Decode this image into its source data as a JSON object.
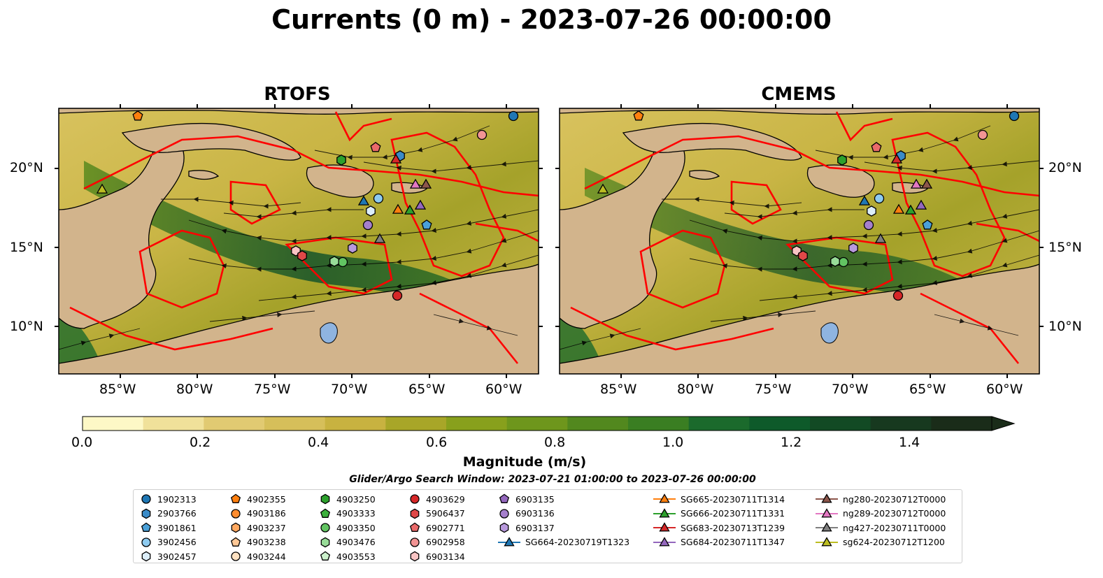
{
  "title": "Currents (0 m) - 2023-07-26 00:00:00",
  "panels": [
    {
      "title": "RTOFS"
    },
    {
      "title": "CMEMS"
    }
  ],
  "map": {
    "lon_range": [
      -89,
      -58
    ],
    "lat_range": [
      7,
      24
    ],
    "lon_ticks": [
      "85°W",
      "80°W",
      "75°W",
      "70°W",
      "65°W",
      "60°W"
    ],
    "lat_ticks": [
      "20°N",
      "15°N",
      "10°N"
    ],
    "land_color": "#d2b48c",
    "boundary_color": "#ff0000",
    "streamline_color": "#000000"
  },
  "colorbar": {
    "label": "Magnitude (m/s)",
    "ticks": [
      "0.0",
      "0.2",
      "0.4",
      "0.6",
      "0.8",
      "1.0",
      "1.2",
      "1.4"
    ],
    "range": [
      0,
      1.5
    ],
    "colors": [
      "#fdf8c6",
      "#f0e19a",
      "#e1ca72",
      "#d6bf5a",
      "#c8b240",
      "#a8a628",
      "#88a01c",
      "#6e961c",
      "#52881e",
      "#3a7e22",
      "#1b6a2c",
      "#0e5a2a",
      "#124a24",
      "#17391f",
      "#1a2c19"
    ]
  },
  "search_window": "Glider/Argo Search Window: 2023-07-21 01:00:00 to 2023-07-26 00:00:00",
  "legend": {
    "argo": [
      {
        "label": "1902313",
        "shape": "circle",
        "color": "#1f77b4"
      },
      {
        "label": "2903766",
        "shape": "hexagon",
        "color": "#3a8bc8"
      },
      {
        "label": "3901861",
        "shape": "pentagon",
        "color": "#4aa0d8"
      },
      {
        "label": "3902456",
        "shape": "circle",
        "color": "#8ecbf0"
      },
      {
        "label": "3902457",
        "shape": "hexagon",
        "color": "#dceefa"
      },
      {
        "label": "4902355",
        "shape": "pentagon",
        "color": "#ff7f0e"
      },
      {
        "label": "4903186",
        "shape": "circle",
        "color": "#ff8c2e"
      },
      {
        "label": "4903237",
        "shape": "hexagon",
        "color": "#ffa860"
      },
      {
        "label": "4903238",
        "shape": "pentagon",
        "color": "#ffc896"
      },
      {
        "label": "4903244",
        "shape": "circle",
        "color": "#ffe2c2"
      },
      {
        "label": "4903250",
        "shape": "hexagon",
        "color": "#2ca02c"
      },
      {
        "label": "4903333",
        "shape": "pentagon",
        "color": "#3cb03c"
      },
      {
        "label": "4903350",
        "shape": "circle",
        "color": "#62c462"
      },
      {
        "label": "4903476",
        "shape": "hexagon",
        "color": "#98dc98"
      },
      {
        "label": "4903553",
        "shape": "pentagon",
        "color": "#cdf2cd"
      },
      {
        "label": "4903629",
        "shape": "circle",
        "color": "#d62728"
      },
      {
        "label": "5906437",
        "shape": "hexagon",
        "color": "#e04848"
      },
      {
        "label": "6902771",
        "shape": "pentagon",
        "color": "#ea6a6a"
      },
      {
        "label": "6902958",
        "shape": "circle",
        "color": "#f29494"
      },
      {
        "label": "6903134",
        "shape": "hexagon",
        "color": "#f8c4c4"
      },
      {
        "label": "6903135",
        "shape": "pentagon",
        "color": "#9467bd"
      },
      {
        "label": "6903136",
        "shape": "circle",
        "color": "#a57fcc"
      },
      {
        "label": "6903137",
        "shape": "hexagon",
        "color": "#b899dc"
      }
    ],
    "gliders": [
      {
        "label": "SG664-20230719T1323",
        "color": "#1f77b4"
      },
      {
        "label": "SG665-20230711T1314",
        "color": "#ff7f0e"
      },
      {
        "label": "SG666-20230711T1331",
        "color": "#2ca02c"
      },
      {
        "label": "SG683-20230713T1239",
        "color": "#d62728"
      },
      {
        "label": "SG684-20230711T1347",
        "color": "#9467bd"
      },
      {
        "label": "ng280-20230712T0000",
        "color": "#8c564b"
      },
      {
        "label": "ng289-20230712T0000",
        "color": "#e377c2"
      },
      {
        "label": "ng427-20230711T0000",
        "color": "#7f7f7f"
      },
      {
        "label": "sg624-20230712T1200",
        "color": "#bcbd22"
      }
    ]
  }
}
